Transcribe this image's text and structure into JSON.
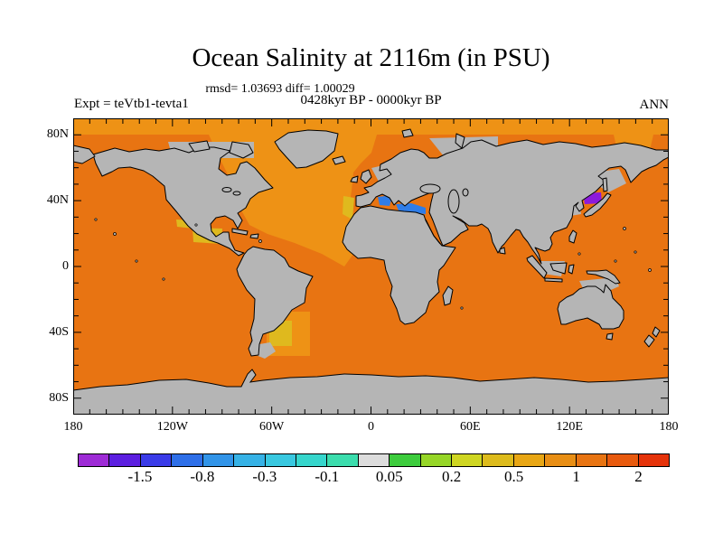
{
  "figure": {
    "title": "Ocean Salinity at 2116m (in PSU)",
    "stats_line": "rmsd= 1.03693 diff= 1.00029",
    "period_line": "0428kyr BP - 0000kyr BP",
    "experiment_label": "Expt = teVtb1-tevta1",
    "season_label": "ANN"
  },
  "chart_data": {
    "type": "heatmap",
    "title": "Ocean Salinity at 2116m (in PSU)",
    "subtitle_stats": "rmsd= 1.03693 diff= 1.00029",
    "subtitle_period": "0428kyr BP - 0000kyr BP",
    "experiment": "Expt = teVtb1-tevta1",
    "season": "ANN",
    "projection": "equirectangular world map, lon 180W-180E, lat 90S-90N",
    "x_tick_labels": [
      "180",
      "120W",
      "60W",
      "0",
      "60E",
      "120E",
      "180"
    ],
    "y_tick_labels": [
      "80N",
      "40N",
      "0",
      "40S",
      "80S"
    ],
    "grid": false,
    "colorbar": {
      "orientation": "horizontal",
      "tick_labels": [
        "-1.5",
        "-0.8",
        "-0.3",
        "-0.1",
        "0.05",
        "0.2",
        "0.5",
        "1",
        "2"
      ],
      "labeled_boundary_indices": [
        2,
        4,
        6,
        8,
        10,
        12,
        14,
        16,
        18
      ],
      "segment_count": 19,
      "colors": [
        "#9E2BD6",
        "#5C1FE0",
        "#3A3BE8",
        "#2E6FE8",
        "#3194E8",
        "#36B2E6",
        "#39C8E0",
        "#36D6CC",
        "#3BDDAD",
        "#DCDCDC",
        "#3DCC3D",
        "#96D627",
        "#CFD622",
        "#DDBB1C",
        "#E8A614",
        "#E88E14",
        "#E87412",
        "#E85A0E",
        "#E5330A"
      ]
    },
    "map_colors": {
      "ocean": "#E87412",
      "ocean_light": "#EE9215",
      "gold": "#DFB91E",
      "mediterranean_blue": "#2F7DE8",
      "japan_purple": "#8C1BDC",
      "land_gray": "#B5B5B5",
      "coastline": "#000000"
    },
    "regions": [
      {
        "name": "global deep ocean (Pacific, Indian, South Atlantic)",
        "approx_value": "about 1 (dark orange)"
      },
      {
        "name": "North Atlantic, Arctic, Norwegian Sea, Bering Sea",
        "approx_value": "0.5 to 1 (light orange)"
      },
      {
        "name": "NW Africa margin, Gulf of Mexico, Caribbean, Argentine basin",
        "approx_value": "about 0.5 (gold)"
      },
      {
        "name": "Mediterranean Sea",
        "approx_value": "-0.3 to -0.8 (blue)"
      },
      {
        "name": "Sea of Japan",
        "approx_value": "about -1.5 (purple)"
      },
      {
        "name": "land and shallow shelves",
        "approx_value": "no data (gray)"
      }
    ]
  }
}
